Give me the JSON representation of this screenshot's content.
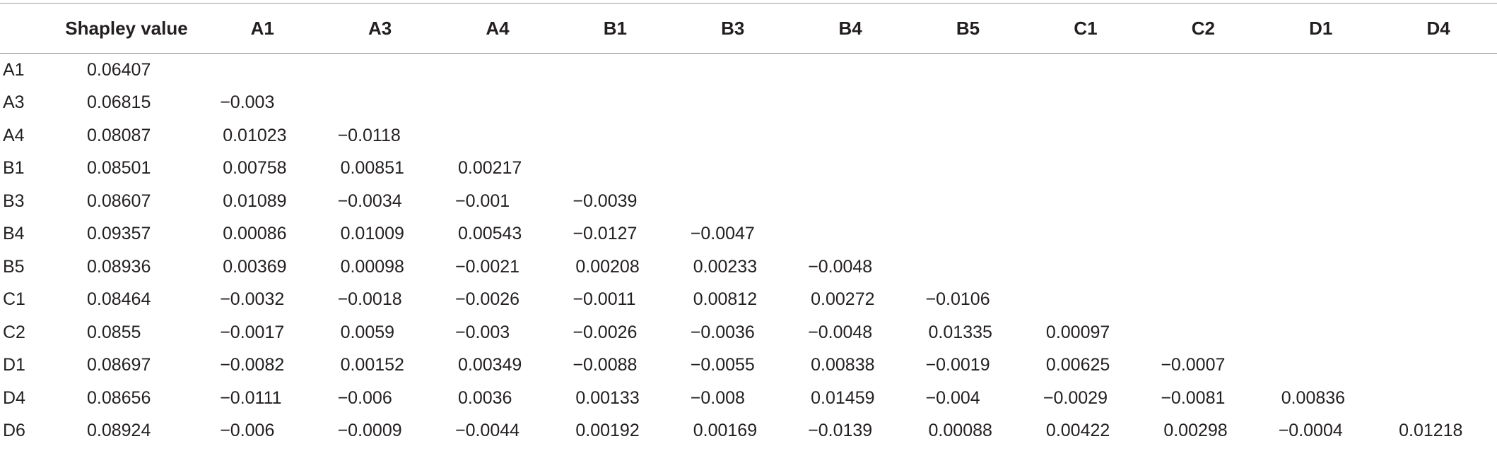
{
  "table": {
    "headers": [
      "",
      "Shapley value",
      "A1",
      "A3",
      "A4",
      "B1",
      "B3",
      "B4",
      "B5",
      "C1",
      "C2",
      "D1",
      "D4"
    ],
    "rows": [
      {
        "label": "A1",
        "cells": [
          "0.06407"
        ]
      },
      {
        "label": "A3",
        "cells": [
          "0.06815",
          "−0.003"
        ]
      },
      {
        "label": "A4",
        "cells": [
          "0.08087",
          "0.01023",
          "−0.0118"
        ]
      },
      {
        "label": "B1",
        "cells": [
          "0.08501",
          "0.00758",
          "0.00851",
          "0.00217"
        ]
      },
      {
        "label": "B3",
        "cells": [
          "0.08607",
          "0.01089",
          "−0.0034",
          "−0.001",
          "−0.0039"
        ]
      },
      {
        "label": "B4",
        "cells": [
          "0.09357",
          "0.00086",
          "0.01009",
          "0.00543",
          "−0.0127",
          "−0.0047"
        ]
      },
      {
        "label": "B5",
        "cells": [
          "0.08936",
          "0.00369",
          "0.00098",
          "−0.0021",
          "0.00208",
          "0.00233",
          "−0.0048"
        ]
      },
      {
        "label": "C1",
        "cells": [
          "0.08464",
          "−0.0032",
          "−0.0018",
          "−0.0026",
          "−0.0011",
          "0.00812",
          "0.00272",
          "−0.0106"
        ]
      },
      {
        "label": "C2",
        "cells": [
          "0.0855",
          "−0.0017",
          "0.0059",
          "−0.003",
          "−0.0026",
          "−0.0036",
          "−0.0048",
          "0.01335",
          "0.00097"
        ]
      },
      {
        "label": "D1",
        "cells": [
          "0.08697",
          "−0.0082",
          "0.00152",
          "0.00349",
          "−0.0088",
          "−0.0055",
          "0.00838",
          "−0.0019",
          "0.00625",
          "−0.0007"
        ]
      },
      {
        "label": "D4",
        "cells": [
          "0.08656",
          "−0.0111",
          "−0.006",
          "0.0036",
          "0.00133",
          "−0.008",
          "0.01459",
          "−0.004",
          "−0.0029",
          "−0.0081",
          "0.00836"
        ]
      },
      {
        "label": "D6",
        "cells": [
          "0.08924",
          "−0.006",
          "−0.0009",
          "−0.0044",
          "0.00192",
          "0.00169",
          "−0.0139",
          "0.00088",
          "0.00422",
          "0.00298",
          "−0.0004",
          "0.01218"
        ]
      }
    ]
  }
}
